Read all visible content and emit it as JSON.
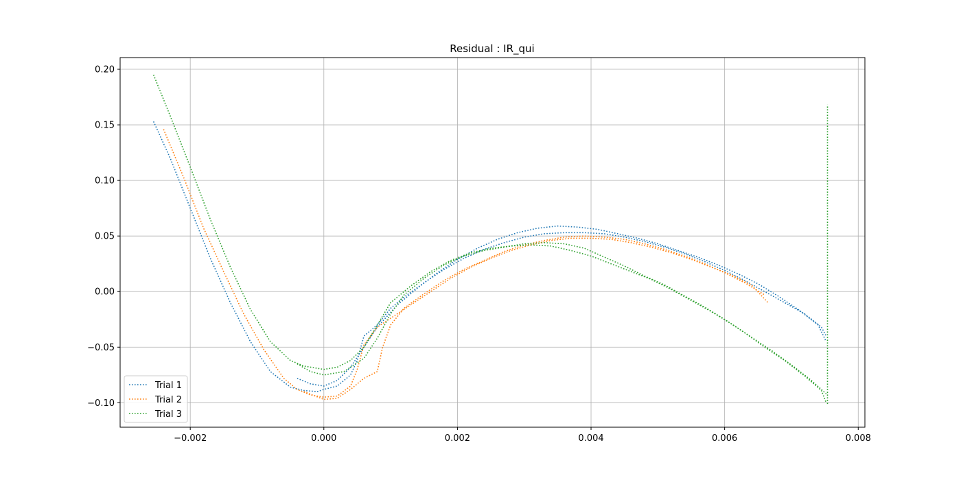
{
  "chart_data": {
    "type": "line",
    "title": "Residual : IR_qui",
    "xlabel": "",
    "ylabel": "",
    "xlim": [
      -0.00305,
      0.0081
    ],
    "ylim": [
      -0.122,
      0.2105
    ],
    "grid": true,
    "line_style": "dotted",
    "x_ticks": [
      -0.002,
      0.0,
      0.002,
      0.004,
      0.006,
      0.008
    ],
    "x_tick_labels": [
      "−0.002",
      "0.000",
      "0.002",
      "0.004",
      "0.006",
      "0.008"
    ],
    "y_ticks": [
      -0.1,
      -0.05,
      0.0,
      0.05,
      0.1,
      0.15,
      0.2
    ],
    "y_tick_labels": [
      "−0.10",
      "−0.05",
      "0.00",
      "0.05",
      "0.10",
      "0.15",
      "0.20"
    ],
    "legend": {
      "location": "lower-left",
      "entries": [
        "Trial 1",
        "Trial 2",
        "Trial 3"
      ]
    },
    "series": [
      {
        "name": "Trial 1",
        "color": "#1f77b4",
        "points": [
          [
            -0.00255,
            0.153
          ],
          [
            -0.0023,
            0.12
          ],
          [
            -0.002,
            0.075
          ],
          [
            -0.0017,
            0.03
          ],
          [
            -0.0014,
            -0.01
          ],
          [
            -0.0011,
            -0.045
          ],
          [
            -0.0008,
            -0.072
          ],
          [
            -0.0005,
            -0.086
          ],
          [
            -0.0003,
            -0.089
          ],
          [
            -0.0001,
            -0.09
          ],
          [
            0.0,
            -0.088
          ],
          [
            0.0002,
            -0.085
          ],
          [
            0.0004,
            -0.075
          ],
          [
            0.0005,
            -0.062
          ],
          [
            0.0006,
            -0.04
          ],
          [
            0.0008,
            -0.03
          ],
          [
            0.001,
            -0.015
          ],
          [
            0.0012,
            -0.005
          ],
          [
            0.0015,
            0.008
          ],
          [
            0.0018,
            0.02
          ],
          [
            0.0021,
            0.03
          ],
          [
            0.0024,
            0.038
          ],
          [
            0.0027,
            0.044
          ],
          [
            0.003,
            0.049
          ],
          [
            0.0033,
            0.052
          ],
          [
            0.0036,
            0.053
          ],
          [
            0.0039,
            0.053
          ],
          [
            0.0042,
            0.052
          ],
          [
            0.0045,
            0.049
          ],
          [
            0.0048,
            0.045
          ],
          [
            0.0051,
            0.04
          ],
          [
            0.0054,
            0.034
          ],
          [
            0.0057,
            0.027
          ],
          [
            0.006,
            0.019
          ],
          [
            0.0063,
            0.01
          ],
          [
            0.0066,
            0.0
          ],
          [
            0.0069,
            -0.01
          ],
          [
            0.0072,
            -0.02
          ],
          [
            0.00745,
            -0.032
          ],
          [
            0.00752,
            -0.04
          ]
        ]
      },
      {
        "name": "Trial 1",
        "color": "#1f77b4",
        "points": [
          [
            -0.0004,
            -0.078
          ],
          [
            -0.0002,
            -0.083
          ],
          [
            0.0,
            -0.085
          ],
          [
            0.0002,
            -0.08
          ],
          [
            0.0004,
            -0.068
          ],
          [
            0.0006,
            -0.05
          ],
          [
            0.0008,
            -0.032
          ],
          [
            0.0011,
            -0.012
          ],
          [
            0.0014,
            0.003
          ],
          [
            0.0017,
            0.017
          ],
          [
            0.002,
            0.029
          ],
          [
            0.0023,
            0.039
          ],
          [
            0.0026,
            0.047
          ],
          [
            0.0029,
            0.053
          ],
          [
            0.0032,
            0.057
          ],
          [
            0.0035,
            0.059
          ],
          [
            0.0038,
            0.058
          ],
          [
            0.0041,
            0.056
          ],
          [
            0.0044,
            0.052
          ],
          [
            0.0047,
            0.048
          ],
          [
            0.005,
            0.043
          ],
          [
            0.0053,
            0.037
          ],
          [
            0.0056,
            0.031
          ],
          [
            0.0059,
            0.024
          ],
          [
            0.0062,
            0.016
          ],
          [
            0.0065,
            0.007
          ],
          [
            0.0068,
            -0.004
          ],
          [
            0.0071,
            -0.016
          ],
          [
            0.0074,
            -0.03
          ],
          [
            0.00752,
            -0.045
          ]
        ]
      },
      {
        "name": "Trial 2",
        "color": "#ff7f0e",
        "points": [
          [
            -0.0024,
            0.146
          ],
          [
            -0.0021,
            0.103
          ],
          [
            -0.0018,
            0.057
          ],
          [
            -0.0015,
            0.018
          ],
          [
            -0.0012,
            -0.02
          ],
          [
            -0.0009,
            -0.052
          ],
          [
            -0.0006,
            -0.078
          ],
          [
            -0.0004,
            -0.088
          ],
          [
            -0.0002,
            -0.093
          ],
          [
            0.0,
            -0.095
          ],
          [
            0.0002,
            -0.094
          ],
          [
            0.0004,
            -0.085
          ],
          [
            0.0005,
            -0.07
          ],
          [
            0.0006,
            -0.048
          ],
          [
            0.0008,
            -0.032
          ],
          [
            0.001,
            -0.024
          ],
          [
            0.0013,
            -0.012
          ],
          [
            0.0016,
            0.0
          ],
          [
            0.0019,
            0.012
          ],
          [
            0.0022,
            0.022
          ],
          [
            0.0025,
            0.03
          ],
          [
            0.0028,
            0.037
          ],
          [
            0.0031,
            0.042
          ],
          [
            0.0034,
            0.046
          ],
          [
            0.0037,
            0.048
          ],
          [
            0.004,
            0.048
          ],
          [
            0.0043,
            0.047
          ],
          [
            0.0046,
            0.044
          ],
          [
            0.0049,
            0.04
          ],
          [
            0.0052,
            0.035
          ],
          [
            0.0055,
            0.029
          ],
          [
            0.0058,
            0.022
          ],
          [
            0.0061,
            0.015
          ],
          [
            0.0064,
            0.006
          ],
          [
            0.00665,
            -0.01
          ]
        ]
      },
      {
        "name": "Trial 2",
        "color": "#ff7f0e",
        "points": [
          [
            -0.0003,
            -0.09
          ],
          [
            0.0,
            -0.097
          ],
          [
            0.0002,
            -0.096
          ],
          [
            0.0004,
            -0.088
          ],
          [
            0.0006,
            -0.078
          ],
          [
            0.0008,
            -0.072
          ],
          [
            0.00088,
            -0.05
          ],
          [
            0.001,
            -0.03
          ],
          [
            0.0012,
            -0.015
          ],
          [
            0.0015,
            -0.002
          ],
          [
            0.0018,
            0.01
          ],
          [
            0.0021,
            0.02
          ],
          [
            0.0024,
            0.028
          ],
          [
            0.0027,
            0.036
          ],
          [
            0.003,
            0.042
          ],
          [
            0.0033,
            0.046
          ],
          [
            0.0036,
            0.049
          ],
          [
            0.0039,
            0.05
          ],
          [
            0.0042,
            0.049
          ],
          [
            0.0045,
            0.047
          ],
          [
            0.0048,
            0.043
          ],
          [
            0.0051,
            0.038
          ],
          [
            0.0054,
            0.032
          ],
          [
            0.0057,
            0.025
          ],
          [
            0.006,
            0.017
          ],
          [
            0.0063,
            0.008
          ],
          [
            0.0066,
            -0.003
          ]
        ]
      },
      {
        "name": "Trial 3",
        "color": "#2ca02c",
        "points": [
          [
            -0.00255,
            0.195
          ],
          [
            -0.0023,
            0.158
          ],
          [
            -0.002,
            0.112
          ],
          [
            -0.0017,
            0.065
          ],
          [
            -0.0014,
            0.022
          ],
          [
            -0.0011,
            -0.016
          ],
          [
            -0.0008,
            -0.045
          ],
          [
            -0.0005,
            -0.062
          ],
          [
            -0.0003,
            -0.067
          ],
          [
            0.0,
            -0.07
          ],
          [
            0.0002,
            -0.068
          ],
          [
            0.0004,
            -0.062
          ],
          [
            0.0006,
            -0.05
          ],
          [
            0.0008,
            -0.03
          ],
          [
            0.001,
            -0.01
          ],
          [
            0.0013,
            0.005
          ],
          [
            0.0016,
            0.018
          ],
          [
            0.0019,
            0.028
          ],
          [
            0.0022,
            0.035
          ],
          [
            0.0025,
            0.039
          ],
          [
            0.0028,
            0.041
          ],
          [
            0.0031,
            0.042
          ],
          [
            0.0034,
            0.041
          ],
          [
            0.0037,
            0.037
          ],
          [
            0.004,
            0.032
          ],
          [
            0.0043,
            0.025
          ],
          [
            0.0046,
            0.018
          ],
          [
            0.0049,
            0.011
          ],
          [
            0.0052,
            0.002
          ],
          [
            0.0055,
            -0.008
          ],
          [
            0.0058,
            -0.018
          ],
          [
            0.0061,
            -0.029
          ],
          [
            0.0064,
            -0.041
          ],
          [
            0.0067,
            -0.053
          ],
          [
            0.007,
            -0.066
          ],
          [
            0.0073,
            -0.08
          ],
          [
            0.00752,
            -0.092
          ]
        ]
      },
      {
        "name": "Trial 3",
        "color": "#2ca02c",
        "points": [
          [
            -0.0004,
            -0.065
          ],
          [
            -0.0002,
            -0.072
          ],
          [
            0.0,
            -0.075
          ],
          [
            0.0003,
            -0.072
          ],
          [
            0.0006,
            -0.06
          ],
          [
            0.0008,
            -0.042
          ],
          [
            0.001,
            -0.02
          ],
          [
            0.0012,
            -0.003
          ],
          [
            0.0015,
            0.012
          ],
          [
            0.0018,
            0.024
          ],
          [
            0.0021,
            0.032
          ],
          [
            0.0024,
            0.037
          ],
          [
            0.0027,
            0.04
          ],
          [
            0.003,
            0.043
          ],
          [
            0.0033,
            0.044
          ],
          [
            0.0036,
            0.043
          ],
          [
            0.0039,
            0.039
          ],
          [
            0.0042,
            0.031
          ],
          [
            0.0045,
            0.023
          ],
          [
            0.0048,
            0.014
          ],
          [
            0.0051,
            0.006
          ],
          [
            0.0054,
            -0.004
          ],
          [
            0.0057,
            -0.014
          ],
          [
            0.006,
            -0.025
          ],
          [
            0.0063,
            -0.037
          ],
          [
            0.0066,
            -0.05
          ],
          [
            0.0069,
            -0.062
          ],
          [
            0.0072,
            -0.076
          ],
          [
            0.00745,
            -0.089
          ],
          [
            0.00752,
            -0.1
          ]
        ]
      },
      {
        "name": "Trial 3",
        "color": "#2ca02c",
        "points": [
          [
            0.00754,
            -0.101
          ],
          [
            0.00754,
            -0.05
          ],
          [
            0.00754,
            0.0
          ],
          [
            0.00754,
            0.05
          ],
          [
            0.00754,
            0.1
          ],
          [
            0.00754,
            0.168
          ]
        ]
      }
    ]
  }
}
